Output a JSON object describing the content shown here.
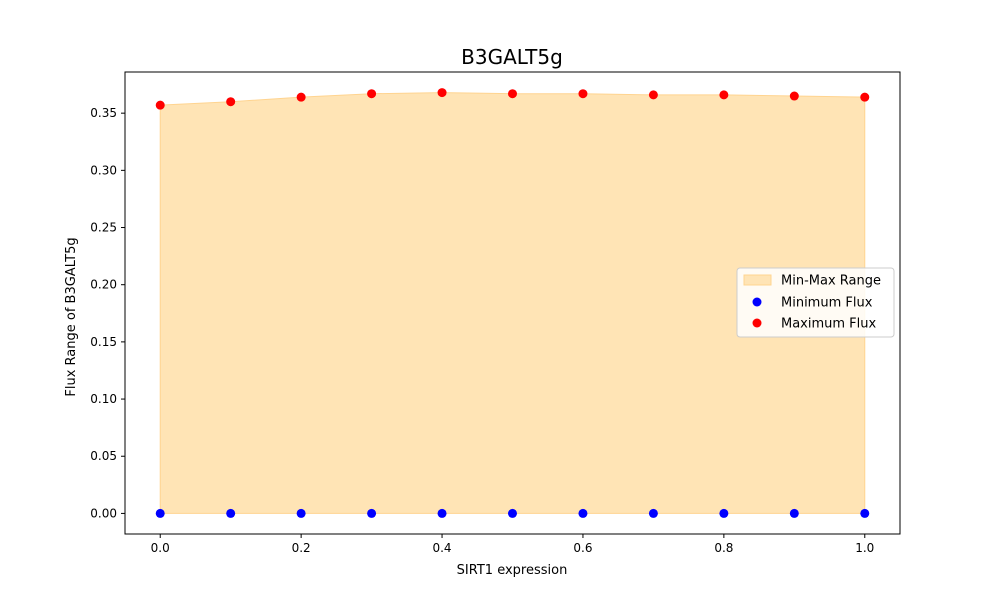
{
  "chart_data": {
    "type": "scatter",
    "title": "B3GALT5g",
    "xlabel": "SIRT1 expression",
    "ylabel": "Flux Range of B3GALT5g",
    "x": [
      0.0,
      0.1,
      0.2,
      0.3,
      0.4,
      0.5,
      0.6,
      0.7,
      0.8,
      0.9,
      1.0
    ],
    "xlim": [
      -0.05,
      1.05
    ],
    "ylim": [
      -0.018,
      0.386
    ],
    "xticks": [
      "0.0",
      "0.2",
      "0.4",
      "0.6",
      "0.8",
      "1.0"
    ],
    "yticks": [
      "0.00",
      "0.05",
      "0.10",
      "0.15",
      "0.20",
      "0.25",
      "0.30",
      "0.35"
    ],
    "grid": false,
    "legend_position": "center-right",
    "series": [
      {
        "name": "Min-Max Range",
        "kind": "fill_between",
        "color": "#ffe4b5",
        "edge_color": "#ffd490"
      },
      {
        "name": "Minimum Flux",
        "kind": "scatter",
        "color": "#0000ff",
        "values": [
          0,
          0,
          0,
          0,
          0,
          0,
          0,
          0,
          0,
          0,
          0
        ]
      },
      {
        "name": "Maximum Flux",
        "kind": "scatter",
        "color": "#ff0000",
        "values": [
          0.357,
          0.36,
          0.364,
          0.367,
          0.368,
          0.367,
          0.367,
          0.366,
          0.366,
          0.365,
          0.364
        ]
      }
    ]
  }
}
